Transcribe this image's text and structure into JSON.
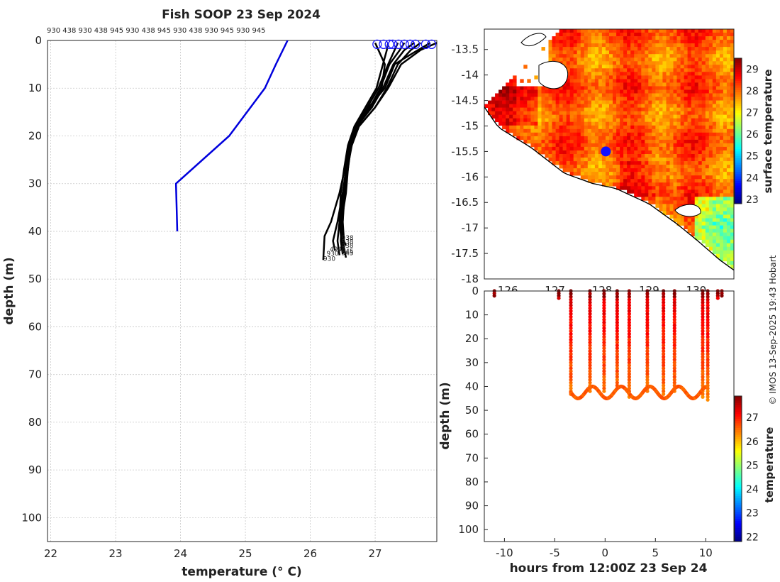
{
  "title": "Fish SOOP 23 Sep 2024",
  "id_labels": "930 438 930 438 945 930 438 945 930 438 930 945 930 945",
  "credit": "© IMOS 13-Sep-2025 19:43 Hobart",
  "colors": {
    "profile": "#000000",
    "climatology": "#0000dd",
    "surface_marker": "#1a1aff"
  },
  "chart_data": [
    {
      "type": "line",
      "name": "temperature-profiles",
      "xlabel": "temperature (° C)",
      "ylabel": "depth (m)",
      "xlim": [
        21.95,
        27.95
      ],
      "ylim": [
        105,
        0
      ],
      "xticks": [
        22,
        23,
        24,
        25,
        26,
        27
      ],
      "yticks": [
        0,
        10,
        20,
        30,
        40,
        50,
        60,
        70,
        80,
        90,
        100
      ],
      "grid": true,
      "climatology": {
        "temp": [
          25.65,
          25.47,
          25.3,
          24.75,
          23.93,
          23.95
        ],
        "depth": [
          0,
          5,
          10,
          20,
          30,
          40
        ]
      },
      "profiles": [
        {
          "temp": [
            27.7,
            27.55,
            27.35,
            27.18,
            27.0,
            26.75,
            26.63,
            26.58,
            26.55,
            26.48,
            26.47,
            26.5
          ],
          "depth": [
            0.5,
            2.0,
            5.0,
            10.0,
            14.0,
            18.0,
            22.0,
            27.0,
            32.0,
            38.0,
            42.0,
            44.8
          ]
        },
        {
          "temp": [
            27.45,
            27.38,
            27.22,
            27.08,
            26.92,
            26.7,
            26.6,
            26.55,
            26.5,
            26.45,
            26.48,
            26.52
          ],
          "depth": [
            0.5,
            2.0,
            5.0,
            10.0,
            14.0,
            18.0,
            22.0,
            27.0,
            32.0,
            38.0,
            42.0,
            44.5
          ]
        },
        {
          "temp": [
            27.0,
            27.05,
            27.15,
            27.1,
            26.95,
            26.7,
            26.62,
            26.58,
            26.52,
            26.47,
            26.5,
            26.55
          ],
          "depth": [
            0.5,
            2.0,
            5.0,
            10.0,
            14.0,
            18.0,
            22.0,
            27.0,
            32.0,
            38.0,
            42.0,
            45.5
          ]
        },
        {
          "temp": [
            27.85,
            27.6,
            27.3,
            27.15,
            26.9,
            26.72,
            26.62,
            26.56,
            26.5,
            26.42,
            26.35,
            26.38
          ],
          "depth": [
            0.5,
            2.5,
            5.0,
            10.0,
            14.0,
            18.0,
            22.0,
            27.0,
            32.0,
            38.0,
            42.0,
            44.0
          ]
        },
        {
          "temp": [
            27.35,
            27.3,
            27.2,
            27.05,
            26.88,
            26.7,
            26.6,
            26.53,
            26.45,
            26.32,
            26.22,
            26.2
          ],
          "depth": [
            0.5,
            2.0,
            5.0,
            10.0,
            14.0,
            18.0,
            22.0,
            27.0,
            32.0,
            38.0,
            41.0,
            46.0
          ]
        },
        {
          "temp": [
            27.6,
            27.45,
            27.28,
            27.12,
            26.95,
            26.72,
            26.63,
            26.57,
            26.53,
            26.5,
            26.52,
            26.55
          ],
          "depth": [
            0.5,
            2.0,
            5.0,
            10.0,
            14.0,
            18.0,
            22.0,
            27.0,
            32.0,
            38.0,
            42.0,
            43.0
          ]
        },
        {
          "temp": [
            27.2,
            27.18,
            27.12,
            27.02,
            26.85,
            26.68,
            26.58,
            26.52,
            26.47,
            26.45,
            26.42,
            26.45
          ],
          "depth": [
            0.5,
            2.0,
            5.0,
            10.0,
            14.0,
            18.0,
            22.0,
            27.0,
            32.0,
            38.0,
            42.0,
            45.0
          ]
        },
        {
          "temp": [
            27.95,
            27.7,
            27.4,
            27.2,
            27.0,
            26.75,
            26.64,
            26.57,
            26.52,
            26.5,
            26.5,
            26.48
          ],
          "depth": [
            0.5,
            2.0,
            5.0,
            10.0,
            14.0,
            18.0,
            22.0,
            27.0,
            32.0,
            38.0,
            42.0,
            44.0
          ]
        }
      ],
      "surface_markers": [
        27.03,
        27.13,
        27.22,
        27.27,
        27.36,
        27.45,
        27.54,
        27.62,
        27.78,
        27.87
      ],
      "end_labels": [
        {
          "text": "938",
          "temp": 26.48,
          "depth": 41.8
        },
        {
          "text": "938",
          "temp": 26.48,
          "depth": 42.6
        },
        {
          "text": "438",
          "temp": 26.48,
          "depth": 43.4
        },
        {
          "text": "945",
          "temp": 26.48,
          "depth": 44.6
        },
        {
          "text": "4945",
          "temp": 26.3,
          "depth": 44.2
        },
        {
          "text": "930",
          "temp": 26.25,
          "depth": 45.1
        },
        {
          "text": "945",
          "temp": 26.48,
          "depth": 45.0
        },
        {
          "text": "930",
          "temp": 26.2,
          "depth": 46.2
        }
      ]
    },
    {
      "type": "heatmap",
      "name": "surface-temperature-map",
      "colorbar_label": "surface temperature",
      "clim": [
        22.8,
        29.5
      ],
      "colorbar_ticks": [
        23,
        24,
        25,
        26,
        27,
        28,
        29
      ],
      "xlim": [
        125.5,
        130.8
      ],
      "ylim": [
        -18,
        -13.1
      ],
      "yticks": [
        -13.5,
        -14,
        -14.5,
        -15,
        -15.5,
        -16,
        -16.5,
        -17,
        -17.5,
        -18
      ],
      "xticks": [
        126,
        127,
        128,
        129,
        130
      ],
      "xtick_labels": [
        "126",
        "127",
        "128",
        "129",
        "130"
      ],
      "marker": {
        "lon": 128.08,
        "lat": -15.5
      }
    },
    {
      "type": "scatter",
      "name": "depth-time-section",
      "xlabel": "hours from 12:00Z 23 Sep 24",
      "ylabel": "depth (m)",
      "colorbar_label": "temperature",
      "xlim": [
        -12,
        12.8
      ],
      "ylim": [
        105,
        0
      ],
      "xticks": [
        -10,
        -5,
        0,
        5,
        10
      ],
      "yticks": [
        0,
        10,
        20,
        30,
        40,
        50,
        60,
        70,
        80,
        90,
        100
      ],
      "clim": [
        21.8,
        27.9
      ],
      "colorbar_ticks": [
        22,
        23,
        24,
        25,
        26,
        27
      ],
      "short_casts": [
        {
          "hour": -11.0,
          "max_depth": 2
        },
        {
          "hour": -4.6,
          "max_depth": 3
        },
        {
          "hour": 11.2,
          "max_depth": 3
        },
        {
          "hour": 11.6,
          "max_depth": 2
        }
      ],
      "deep_casts": [
        {
          "hour": -3.4,
          "max_depth": 44
        },
        {
          "hour": -1.5,
          "max_depth": 43
        },
        {
          "hour": -0.1,
          "max_depth": 43
        },
        {
          "hour": 1.2,
          "max_depth": 42
        },
        {
          "hour": 2.4,
          "max_depth": 45
        },
        {
          "hour": 4.2,
          "max_depth": 43
        },
        {
          "hour": 5.8,
          "max_depth": 44
        },
        {
          "hour": 6.9,
          "max_depth": 43
        },
        {
          "hour": 9.7,
          "max_depth": 45
        },
        {
          "hour": 10.2,
          "max_depth": 46
        }
      ],
      "bottom_segment": {
        "hour_start": -3.4,
        "hour_end": 10.2,
        "depth_min": 40,
        "depth_max": 45
      }
    }
  ]
}
